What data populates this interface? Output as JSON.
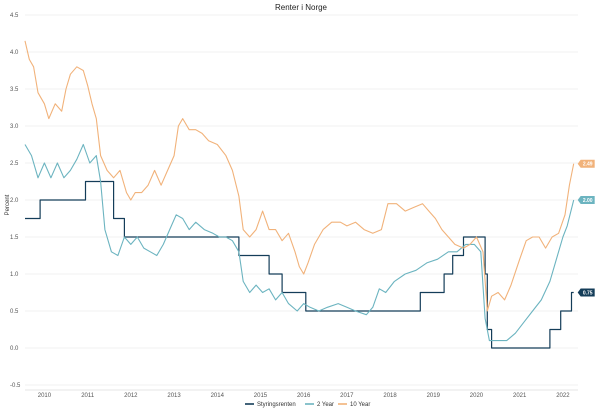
{
  "chart_data": {
    "type": "line",
    "title": "Renter i Norge",
    "ylabel": "Percent",
    "xlabel": "",
    "ylim": [
      -0.5,
      4.5
    ],
    "xlim": [
      2009.55,
      2022.35
    ],
    "yticks": [
      -0.5,
      0.0,
      0.5,
      1.0,
      1.5,
      2.0,
      2.5,
      3.0,
      3.5,
      4.0,
      4.5
    ],
    "ytick_labels": [
      "-0.5",
      "0.0",
      "0.5",
      "1.0",
      "1.5",
      "2.0",
      "2.5",
      "3.0",
      "3.5",
      "4.0",
      "4.5"
    ],
    "xticks": [
      2010,
      2011,
      2012,
      2013,
      2014,
      2015,
      2016,
      2017,
      2018,
      2019,
      2020,
      2021,
      2022
    ],
    "xtick_labels": [
      "2010",
      "2011",
      "2012",
      "2013",
      "2014",
      "2015",
      "2016",
      "2017",
      "2018",
      "2019",
      "2020",
      "2021",
      "2022"
    ],
    "grid": "horizontal",
    "legend_position": "bottom",
    "series": [
      {
        "name": "Styringsrenten",
        "color": "#143d59",
        "step": true,
        "end_label": "0.75",
        "points": [
          [
            2009.55,
            1.75
          ],
          [
            2009.9,
            1.75
          ],
          [
            2009.9,
            2.0
          ],
          [
            2010.95,
            2.0
          ],
          [
            2010.95,
            2.25
          ],
          [
            2011.6,
            2.25
          ],
          [
            2011.6,
            1.75
          ],
          [
            2011.85,
            1.75
          ],
          [
            2011.85,
            1.5
          ],
          [
            2014.5,
            1.5
          ],
          [
            2014.5,
            1.25
          ],
          [
            2015.2,
            1.25
          ],
          [
            2015.2,
            1.0
          ],
          [
            2015.5,
            1.0
          ],
          [
            2015.5,
            0.75
          ],
          [
            2016.05,
            0.75
          ],
          [
            2016.05,
            0.5
          ],
          [
            2018.7,
            0.5
          ],
          [
            2018.7,
            0.75
          ],
          [
            2019.25,
            0.75
          ],
          [
            2019.25,
            1.0
          ],
          [
            2019.45,
            1.0
          ],
          [
            2019.45,
            1.25
          ],
          [
            2019.7,
            1.25
          ],
          [
            2019.7,
            1.5
          ],
          [
            2020.2,
            1.5
          ],
          [
            2020.2,
            1.0
          ],
          [
            2020.25,
            1.0
          ],
          [
            2020.25,
            0.25
          ],
          [
            2020.35,
            0.25
          ],
          [
            2020.35,
            0.0
          ],
          [
            2021.7,
            0.0
          ],
          [
            2021.7,
            0.25
          ],
          [
            2021.95,
            0.25
          ],
          [
            2021.95,
            0.5
          ],
          [
            2022.2,
            0.5
          ],
          [
            2022.2,
            0.75
          ],
          [
            2022.25,
            0.75
          ]
        ]
      },
      {
        "name": "2 Year",
        "color": "#6cb4c0",
        "step": false,
        "end_label": "2.00",
        "points": [
          [
            2009.55,
            2.75
          ],
          [
            2009.7,
            2.6
          ],
          [
            2009.85,
            2.3
          ],
          [
            2010.0,
            2.5
          ],
          [
            2010.15,
            2.3
          ],
          [
            2010.3,
            2.5
          ],
          [
            2010.45,
            2.3
          ],
          [
            2010.6,
            2.4
          ],
          [
            2010.75,
            2.55
          ],
          [
            2010.9,
            2.75
          ],
          [
            2011.05,
            2.5
          ],
          [
            2011.2,
            2.6
          ],
          [
            2011.3,
            2.25
          ],
          [
            2011.4,
            1.6
          ],
          [
            2011.55,
            1.3
          ],
          [
            2011.7,
            1.25
          ],
          [
            2011.85,
            1.5
          ],
          [
            2012.0,
            1.4
          ],
          [
            2012.15,
            1.5
          ],
          [
            2012.3,
            1.35
          ],
          [
            2012.45,
            1.3
          ],
          [
            2012.6,
            1.25
          ],
          [
            2012.75,
            1.4
          ],
          [
            2012.9,
            1.6
          ],
          [
            2013.05,
            1.8
          ],
          [
            2013.2,
            1.75
          ],
          [
            2013.35,
            1.6
          ],
          [
            2013.5,
            1.7
          ],
          [
            2013.7,
            1.6
          ],
          [
            2013.9,
            1.55
          ],
          [
            2014.05,
            1.5
          ],
          [
            2014.2,
            1.5
          ],
          [
            2014.35,
            1.45
          ],
          [
            2014.5,
            1.3
          ],
          [
            2014.6,
            0.9
          ],
          [
            2014.75,
            0.75
          ],
          [
            2014.9,
            0.85
          ],
          [
            2015.05,
            0.75
          ],
          [
            2015.2,
            0.8
          ],
          [
            2015.35,
            0.65
          ],
          [
            2015.5,
            0.75
          ],
          [
            2015.65,
            0.6
          ],
          [
            2015.85,
            0.5
          ],
          [
            2016.0,
            0.6
          ],
          [
            2016.15,
            0.55
          ],
          [
            2016.35,
            0.5
          ],
          [
            2016.55,
            0.55
          ],
          [
            2016.8,
            0.6
          ],
          [
            2017.0,
            0.55
          ],
          [
            2017.2,
            0.5
          ],
          [
            2017.45,
            0.45
          ],
          [
            2017.6,
            0.55
          ],
          [
            2017.75,
            0.8
          ],
          [
            2017.9,
            0.75
          ],
          [
            2018.1,
            0.9
          ],
          [
            2018.35,
            1.0
          ],
          [
            2018.6,
            1.05
          ],
          [
            2018.85,
            1.15
          ],
          [
            2019.1,
            1.2
          ],
          [
            2019.35,
            1.3
          ],
          [
            2019.55,
            1.3
          ],
          [
            2019.75,
            1.4
          ],
          [
            2019.95,
            1.4
          ],
          [
            2020.1,
            1.3
          ],
          [
            2020.2,
            0.4
          ],
          [
            2020.3,
            0.1
          ],
          [
            2020.45,
            0.1
          ],
          [
            2020.7,
            0.1
          ],
          [
            2020.9,
            0.2
          ],
          [
            2021.1,
            0.35
          ],
          [
            2021.3,
            0.5
          ],
          [
            2021.5,
            0.65
          ],
          [
            2021.7,
            0.9
          ],
          [
            2021.85,
            1.2
          ],
          [
            2022.0,
            1.5
          ],
          [
            2022.1,
            1.65
          ],
          [
            2022.25,
            2.0
          ]
        ]
      },
      {
        "name": "10 Year",
        "color": "#f1b27a",
        "step": false,
        "end_label": "2.49",
        "points": [
          [
            2009.55,
            4.15
          ],
          [
            2009.65,
            3.9
          ],
          [
            2009.75,
            3.8
          ],
          [
            2009.85,
            3.45
          ],
          [
            2010.0,
            3.3
          ],
          [
            2010.1,
            3.1
          ],
          [
            2010.25,
            3.3
          ],
          [
            2010.4,
            3.2
          ],
          [
            2010.5,
            3.5
          ],
          [
            2010.6,
            3.7
          ],
          [
            2010.75,
            3.8
          ],
          [
            2010.9,
            3.75
          ],
          [
            2011.0,
            3.55
          ],
          [
            2011.1,
            3.3
          ],
          [
            2011.2,
            3.1
          ],
          [
            2011.3,
            2.6
          ],
          [
            2011.45,
            2.4
          ],
          [
            2011.6,
            2.3
          ],
          [
            2011.75,
            2.4
          ],
          [
            2011.9,
            2.1
          ],
          [
            2012.0,
            2.0
          ],
          [
            2012.1,
            2.1
          ],
          [
            2012.25,
            2.1
          ],
          [
            2012.4,
            2.2
          ],
          [
            2012.55,
            2.4
          ],
          [
            2012.7,
            2.2
          ],
          [
            2012.85,
            2.4
          ],
          [
            2013.0,
            2.6
          ],
          [
            2013.1,
            3.0
          ],
          [
            2013.2,
            3.1
          ],
          [
            2013.35,
            2.95
          ],
          [
            2013.5,
            2.95
          ],
          [
            2013.65,
            2.9
          ],
          [
            2013.8,
            2.8
          ],
          [
            2014.0,
            2.75
          ],
          [
            2014.2,
            2.6
          ],
          [
            2014.35,
            2.4
          ],
          [
            2014.5,
            2.05
          ],
          [
            2014.6,
            1.6
          ],
          [
            2014.75,
            1.5
          ],
          [
            2014.9,
            1.6
          ],
          [
            2015.05,
            1.85
          ],
          [
            2015.2,
            1.6
          ],
          [
            2015.35,
            1.6
          ],
          [
            2015.5,
            1.45
          ],
          [
            2015.65,
            1.55
          ],
          [
            2015.8,
            1.3
          ],
          [
            2015.9,
            1.1
          ],
          [
            2016.0,
            1.0
          ],
          [
            2016.1,
            1.15
          ],
          [
            2016.25,
            1.4
          ],
          [
            2016.45,
            1.6
          ],
          [
            2016.65,
            1.7
          ],
          [
            2016.85,
            1.7
          ],
          [
            2017.0,
            1.65
          ],
          [
            2017.2,
            1.7
          ],
          [
            2017.4,
            1.6
          ],
          [
            2017.6,
            1.55
          ],
          [
            2017.8,
            1.6
          ],
          [
            2017.95,
            1.95
          ],
          [
            2018.15,
            1.95
          ],
          [
            2018.35,
            1.85
          ],
          [
            2018.55,
            1.9
          ],
          [
            2018.75,
            1.95
          ],
          [
            2018.9,
            1.85
          ],
          [
            2019.05,
            1.75
          ],
          [
            2019.2,
            1.6
          ],
          [
            2019.35,
            1.5
          ],
          [
            2019.5,
            1.4
          ],
          [
            2019.7,
            1.35
          ],
          [
            2019.85,
            1.4
          ],
          [
            2020.0,
            1.5
          ],
          [
            2020.15,
            1.3
          ],
          [
            2020.25,
            0.5
          ],
          [
            2020.35,
            0.7
          ],
          [
            2020.5,
            0.75
          ],
          [
            2020.65,
            0.65
          ],
          [
            2020.8,
            0.85
          ],
          [
            2021.0,
            1.2
          ],
          [
            2021.15,
            1.45
          ],
          [
            2021.3,
            1.5
          ],
          [
            2021.45,
            1.5
          ],
          [
            2021.6,
            1.35
          ],
          [
            2021.75,
            1.5
          ],
          [
            2021.9,
            1.55
          ],
          [
            2022.05,
            1.8
          ],
          [
            2022.15,
            2.2
          ],
          [
            2022.25,
            2.49
          ]
        ]
      }
    ]
  }
}
